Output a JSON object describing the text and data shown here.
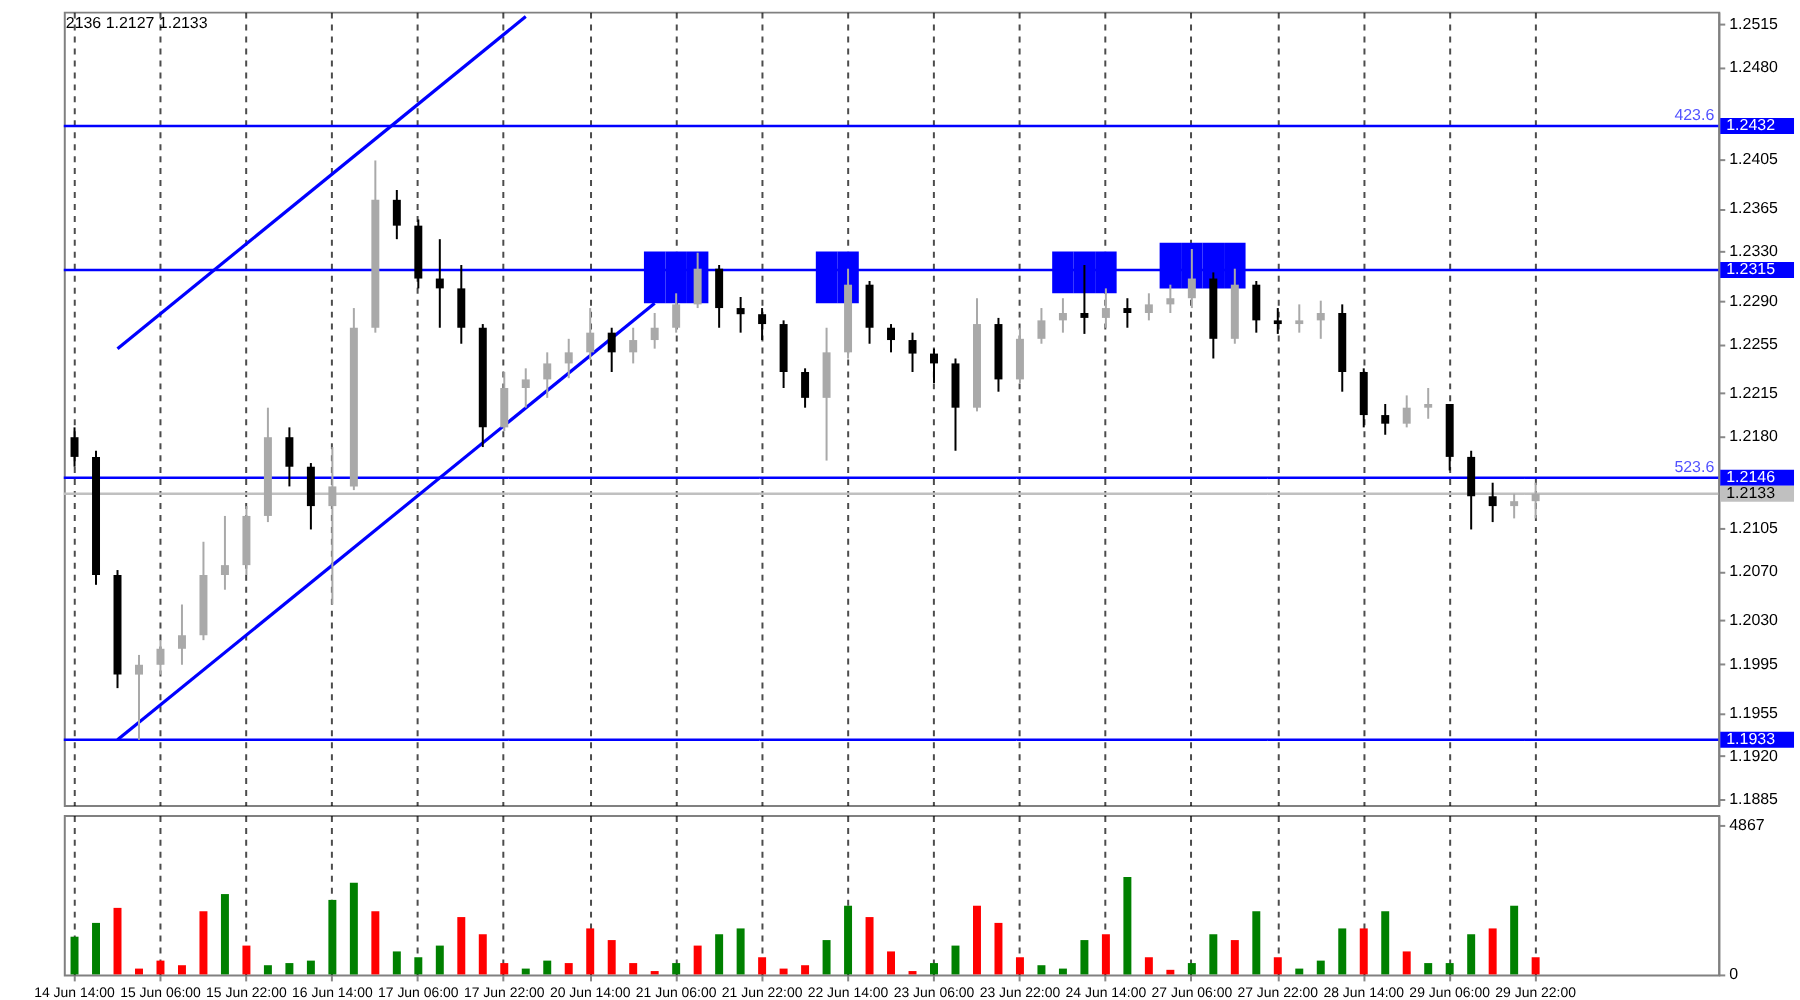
{
  "chart_data": [
    {
      "type": "candlestick",
      "annotations": [
        "2136 1.2127 1.2133",
        {
          "text": "423.6",
          "y": 1.2432
        },
        {
          "text": "523.6",
          "y": 1.2146
        }
      ],
      "categories": [
        null,
        null,
        null,
        null,
        null,
        null,
        null,
        null,
        null,
        null,
        null,
        null,
        null,
        null,
        null,
        null,
        null,
        null,
        null,
        null,
        null,
        null,
        null,
        null,
        null,
        null,
        null,
        null,
        null,
        null,
        null,
        null,
        null,
        null,
        null,
        null,
        null,
        null,
        null,
        null,
        null,
        null,
        null,
        null,
        null,
        null,
        null,
        null,
        null,
        null,
        null,
        null,
        null,
        null,
        null,
        null,
        null,
        null,
        null,
        null,
        null,
        null,
        null,
        null,
        null,
        null,
        null,
        null,
        null,
        null,
        null,
        null,
        null,
        null,
        null,
        null,
        null
      ],
      "ohlc": [
        [
          1.2179,
          1.2187,
          1.2155,
          1.2163
        ],
        [
          1.2163,
          1.2168,
          1.2059,
          1.2067
        ],
        [
          1.2067,
          1.2071,
          1.1975,
          1.1986
        ],
        [
          1.1986,
          1.2002,
          1.1933,
          1.1994
        ],
        [
          1.1994,
          1.2014,
          1.1986,
          1.2007
        ],
        [
          1.2007,
          1.2043,
          1.1994,
          1.2018
        ],
        [
          1.2018,
          1.2094,
          1.2014,
          1.2067
        ],
        [
          1.2067,
          1.2115,
          1.2055,
          1.2075
        ],
        [
          1.2075,
          1.2123,
          1.2067,
          1.2115
        ],
        [
          1.2115,
          1.2203,
          1.211,
          1.2179
        ],
        [
          1.2179,
          1.2187,
          1.2139,
          1.2155
        ],
        [
          1.2155,
          1.2158,
          1.2104,
          1.2123
        ],
        [
          1.2123,
          1.2171,
          1.2043,
          1.2139
        ],
        [
          1.2139,
          1.2284,
          1.2136,
          1.2268
        ],
        [
          1.2268,
          1.2404,
          1.2264,
          1.2372
        ],
        [
          1.2372,
          1.238,
          1.234,
          1.2351
        ],
        [
          1.2351,
          1.2356,
          1.23,
          1.2308
        ],
        [
          1.2308,
          1.234,
          1.2268,
          1.23
        ],
        [
          1.23,
          1.2319,
          1.2255,
          1.2268
        ],
        [
          1.2268,
          1.2271,
          1.2171,
          1.2187
        ],
        [
          1.2187,
          1.2232,
          1.2184,
          1.2219
        ],
        [
          1.2219,
          1.2235,
          1.2203,
          1.2226
        ],
        [
          1.2226,
          1.2248,
          1.2211,
          1.2239
        ],
        [
          1.2239,
          1.2259,
          1.2227,
          1.2248
        ],
        [
          1.2248,
          1.2284,
          1.2242,
          1.2264
        ],
        [
          1.2264,
          1.2268,
          1.2232,
          1.2248
        ],
        [
          1.2248,
          1.2268,
          1.2239,
          1.2258
        ],
        [
          1.2258,
          1.228,
          1.2251,
          1.2268
        ],
        [
          1.2268,
          1.2296,
          1.2264,
          1.2287
        ],
        [
          1.2287,
          1.2329,
          1.2284,
          1.2316
        ],
        [
          1.2316,
          1.2319,
          1.2268,
          1.2284
        ],
        [
          1.2284,
          1.2293,
          1.2264,
          1.2279
        ],
        [
          1.2279,
          1.2284,
          1.2258,
          1.2271
        ],
        [
          1.2271,
          1.2274,
          1.2219,
          1.2232
        ],
        [
          1.2232,
          1.2235,
          1.2203,
          1.2211
        ],
        [
          1.2211,
          1.2268,
          1.216,
          1.2248
        ],
        [
          1.2248,
          1.2316,
          1.2243,
          1.2303
        ],
        [
          1.2303,
          1.2306,
          1.2255,
          1.2268
        ],
        [
          1.2268,
          1.2271,
          1.2248,
          1.2258
        ],
        [
          1.2258,
          1.2264,
          1.2232,
          1.2247
        ],
        [
          1.2247,
          1.2251,
          1.2223,
          1.2239
        ],
        [
          1.2239,
          1.2243,
          1.2168,
          1.2203
        ],
        [
          1.2203,
          1.2292,
          1.22,
          1.2271
        ],
        [
          1.2271,
          1.2276,
          1.2216,
          1.2226
        ],
        [
          1.2226,
          1.2268,
          1.2223,
          1.2259
        ],
        [
          1.2259,
          1.2284,
          1.2255,
          1.2274
        ],
        [
          1.2274,
          1.2292,
          1.2264,
          1.228
        ],
        [
          1.228,
          1.2319,
          1.2263,
          1.2276
        ],
        [
          1.2276,
          1.23,
          1.2268,
          1.2284
        ],
        [
          1.2284,
          1.2292,
          1.2268,
          1.228
        ],
        [
          1.228,
          1.2296,
          1.2274,
          1.2287
        ],
        [
          1.2287,
          1.2303,
          1.228,
          1.2292
        ],
        [
          1.2292,
          1.2332,
          1.2284,
          1.2308
        ],
        [
          1.2308,
          1.2313,
          1.2243,
          1.2259
        ],
        [
          1.2259,
          1.2316,
          1.2255,
          1.2303
        ],
        [
          1.2303,
          1.2306,
          1.2264,
          1.2274
        ],
        [
          1.2274,
          1.2284,
          1.2263,
          1.2271
        ],
        [
          1.2271,
          1.2287,
          1.2264,
          1.2274
        ],
        [
          1.2274,
          1.229,
          1.2259,
          1.228
        ],
        [
          1.228,
          1.2287,
          1.2216,
          1.2232
        ],
        [
          1.2232,
          1.2235,
          1.2187,
          1.2197
        ],
        [
          1.2197,
          1.2206,
          1.2181,
          1.219
        ],
        [
          1.219,
          1.2213,
          1.2187,
          1.2203
        ],
        [
          1.2203,
          1.2219,
          1.2194,
          1.2206
        ],
        [
          1.2206,
          1.2206,
          1.2152,
          1.2163
        ],
        [
          1.2163,
          1.2168,
          1.2104,
          1.2131
        ],
        [
          1.2131,
          1.2142,
          1.211,
          1.2123
        ],
        [
          1.2123,
          1.2133,
          1.2113,
          1.2127
        ],
        [
          1.2127,
          1.2142,
          1.2113,
          1.2133
        ],
        null,
        null,
        null,
        null,
        null,
        null,
        null,
        null
      ],
      "colors": [
        "#000000",
        "#000000",
        "#000000",
        "#a9a9a9",
        "#a9a9a9",
        "#a9a9a9",
        "#a9a9a9",
        "#a9a9a9",
        "#a9a9a9",
        "#a9a9a9",
        "#000000",
        "#000000",
        "#a9a9a9",
        "#a9a9a9",
        "#a9a9a9",
        "#000000",
        "#000000",
        "#000000",
        "#000000",
        "#000000",
        "#a9a9a9",
        "#a9a9a9",
        "#a9a9a9",
        "#a9a9a9",
        "#a9a9a9",
        "#000000",
        "#a9a9a9",
        "#a9a9a9",
        "#a9a9a9",
        "#a9a9a9",
        "#000000",
        "#000000",
        "#000000",
        "#000000",
        "#000000",
        "#a9a9a9",
        "#a9a9a9",
        "#000000",
        "#000000",
        "#000000",
        "#000000",
        "#000000",
        "#a9a9a9",
        "#000000",
        "#a9a9a9",
        "#a9a9a9",
        "#a9a9a9",
        "#000000",
        "#a9a9a9",
        "#000000",
        "#a9a9a9",
        "#a9a9a9",
        "#a9a9a9",
        "#000000",
        "#a9a9a9",
        "#000000",
        "#000000",
        "#a9a9a9",
        "#a9a9a9",
        "#000000",
        "#000000",
        "#000000",
        "#a9a9a9",
        "#a9a9a9",
        "#000000",
        "#000000",
        "#000000",
        "#a9a9a9",
        "#a9a9a9",
        null,
        null,
        null,
        null,
        null,
        null,
        null,
        null
      ],
      "series": [
        {
          "type": "line",
          "color": "#0000ff",
          "values": [
            null,
            null,
            1.2251,
            null,
            null,
            null,
            null,
            null,
            null,
            null,
            null,
            null,
            null,
            null,
            null,
            null,
            null,
            null,
            null,
            null,
            null,
            1.2521,
            null,
            null,
            null,
            null,
            null,
            null,
            null,
            null,
            null,
            null,
            null,
            null,
            null,
            null,
            null,
            null,
            null,
            null,
            null,
            null,
            null,
            null,
            null,
            null,
            null,
            null,
            null,
            null,
            null,
            null,
            null,
            null,
            null,
            null,
            null,
            null,
            null,
            null,
            null,
            null,
            null,
            null,
            null,
            null,
            null,
            null,
            null,
            null,
            null,
            null,
            null,
            null,
            null,
            null,
            null
          ]
        },
        {
          "type": "line",
          "color": "#0000ff",
          "values": [
            null,
            null,
            1.1933,
            null,
            null,
            null,
            null,
            null,
            null,
            null,
            null,
            null,
            null,
            null,
            null,
            null,
            null,
            null,
            null,
            null,
            null,
            null,
            null,
            null,
            null,
            null,
            null,
            1.2288,
            null,
            null,
            null,
            null,
            null,
            null,
            null,
            null,
            null,
            null,
            null,
            null,
            null,
            null,
            null,
            null,
            null,
            null,
            null,
            null,
            null,
            null,
            null,
            null,
            null,
            null,
            null,
            null,
            null,
            null,
            null,
            null,
            null,
            null,
            null,
            null,
            null,
            null,
            null,
            null,
            null,
            null,
            null,
            null,
            null,
            null,
            null,
            null,
            null
          ]
        },
        {
          "type": "bar",
          "color": "#0000ff",
          "base": [
            null,
            null,
            null,
            null,
            null,
            null,
            null,
            null,
            null,
            null,
            null,
            null,
            null,
            null,
            null,
            null,
            null,
            null,
            null,
            null,
            null,
            null,
            null,
            null,
            null,
            null,
            null,
            1.2288,
            1.2288,
            1.2288,
            null,
            null,
            null,
            null,
            null,
            1.2288,
            1.2288,
            null,
            null,
            null,
            null,
            null,
            null,
            null,
            null,
            null,
            1.2296,
            1.2296,
            1.2296,
            null,
            null,
            1.23,
            1.23,
            1.23,
            1.23,
            null,
            null,
            null,
            null,
            null,
            null,
            null,
            null,
            null,
            null,
            null,
            null,
            null,
            null,
            null,
            null,
            null,
            null,
            null,
            null,
            null,
            null
          ],
          "values": [
            null,
            null,
            null,
            null,
            null,
            null,
            null,
            null,
            null,
            null,
            null,
            null,
            null,
            null,
            null,
            null,
            null,
            null,
            null,
            null,
            null,
            null,
            null,
            null,
            null,
            null,
            null,
            0.0042,
            0.0042,
            0.0042,
            null,
            null,
            null,
            null,
            null,
            0.0042,
            0.0042,
            null,
            null,
            null,
            null,
            null,
            null,
            null,
            null,
            null,
            0.0034,
            0.0034,
            0.0034,
            null,
            null,
            0.0037,
            0.0037,
            0.0037,
            0.0037,
            null,
            null,
            null,
            null,
            null,
            null,
            null,
            null,
            null,
            null,
            null,
            null,
            null,
            null,
            null,
            null,
            null,
            null,
            null,
            null,
            null,
            null
          ]
        }
      ],
      "ref_lines": [
        {
          "axis": "y",
          "value": 1.2432,
          "label": "1.2432",
          "color": "#0000ff"
        },
        {
          "axis": "y",
          "value": 1.2315,
          "label": "1.2315",
          "color": "#0000ff"
        },
        {
          "axis": "y",
          "value": 1.2146,
          "label": "1.2146",
          "color": "#0000ff"
        },
        {
          "axis": "y",
          "value": 1.2133,
          "label": "1.2133",
          "color": "#c0c0c0"
        },
        {
          "axis": "y",
          "value": 1.1933,
          "label": "1.1933",
          "color": "#0000ff"
        }
      ],
      "ylim": [
        1.188,
        1.2525
      ],
      "yticks": [
        1.2515,
        {
          "value": 1.248,
          "label": "1.2480"
        },
        1.2405,
        1.2365,
        {
          "value": 1.233,
          "label": "1.2330"
        },
        {
          "value": 1.229,
          "label": "1.2290"
        },
        1.2255,
        1.2215,
        {
          "value": 1.218,
          "label": "1.2180"
        },
        1.2105,
        {
          "value": 1.207,
          "label": "1.2070"
        },
        {
          "value": 1.203,
          "label": "1.2030"
        },
        1.1995,
        1.1955,
        {
          "value": 1.192,
          "label": "1.1920"
        },
        1.1885
      ],
      "grid": "x",
      "tick_labels": "y"
    },
    {
      "type": "bar",
      "categories": [
        "14 Jun 14:00",
        null,
        null,
        null,
        "15 Jun 06:00",
        null,
        null,
        null,
        "15 Jun 22:00",
        null,
        null,
        null,
        "16 Jun 14:00",
        null,
        null,
        null,
        "17 Jun 06:00",
        null,
        null,
        null,
        "17 Jun 22:00",
        null,
        null,
        null,
        "20 Jun 14:00",
        null,
        null,
        null,
        "21 Jun 06:00",
        null,
        null,
        null,
        "21 Jun 22:00",
        null,
        null,
        null,
        "22 Jun 14:00",
        null,
        null,
        null,
        "23 Jun 06:00",
        null,
        null,
        null,
        "23 Jun 22:00",
        null,
        null,
        null,
        "24 Jun 14:00",
        null,
        null,
        null,
        "27 Jun 06:00",
        null,
        null,
        null,
        "27 Jun 22:00",
        null,
        null,
        null,
        "28 Jun 14:00",
        null,
        null,
        null,
        "29 Jun 06:00",
        null,
        null,
        null,
        "29 Jun 22:00",
        null,
        null,
        null,
        null,
        null,
        null,
        null,
        null
      ],
      "values": [
        1230,
        1680,
        2170,
        190,
        450,
        300,
        2060,
        2620,
        940,
        300,
        370,
        450,
        2430,
        2990,
        2060,
        750,
        560,
        940,
        1870,
        1310,
        370,
        190,
        450,
        370,
        1500,
        1120,
        370,
        110,
        370,
        940,
        1310,
        1500,
        560,
        190,
        300,
        1120,
        2240,
        1870,
        750,
        110,
        370,
        940,
        2240,
        1680,
        560,
        300,
        190,
        1120,
        1310,
        3180,
        560,
        150,
        370,
        1310,
        1120,
        2060,
        560,
        190,
        450,
        1500,
        1500,
        2060,
        750,
        370,
        370,
        1310,
        1500,
        2240,
        560,
        null,
        null,
        null,
        null,
        null,
        null,
        null,
        null
      ],
      "colors": [
        "#008000",
        "#008000",
        "#ff0000",
        "#ff0000",
        "#ff0000",
        "#ff0000",
        "#ff0000",
        "#008000",
        "#ff0000",
        "#008000",
        "#008000",
        "#008000",
        "#008000",
        "#008000",
        "#ff0000",
        "#008000",
        "#008000",
        "#008000",
        "#ff0000",
        "#ff0000",
        "#ff0000",
        "#008000",
        "#008000",
        "#ff0000",
        "#ff0000",
        "#ff0000",
        "#ff0000",
        "#ff0000",
        "#008000",
        "#ff0000",
        "#008000",
        "#008000",
        "#ff0000",
        "#ff0000",
        "#ff0000",
        "#008000",
        "#008000",
        "#ff0000",
        "#ff0000",
        "#ff0000",
        "#008000",
        "#008000",
        "#ff0000",
        "#ff0000",
        "#ff0000",
        "#008000",
        "#008000",
        "#008000",
        "#ff0000",
        "#008000",
        "#ff0000",
        "#ff0000",
        "#008000",
        "#008000",
        "#ff0000",
        "#008000",
        "#ff0000",
        "#008000",
        "#008000",
        "#008000",
        "#ff0000",
        "#008000",
        "#ff0000",
        "#008000",
        "#008000",
        "#008000",
        "#ff0000",
        "#008000",
        "#ff0000",
        null,
        null,
        null,
        null,
        null,
        null,
        null,
        null
      ],
      "ylim": [
        0,
        5200
      ],
      "yticks": [
        0,
        4867
      ],
      "grid": "x"
    }
  ]
}
